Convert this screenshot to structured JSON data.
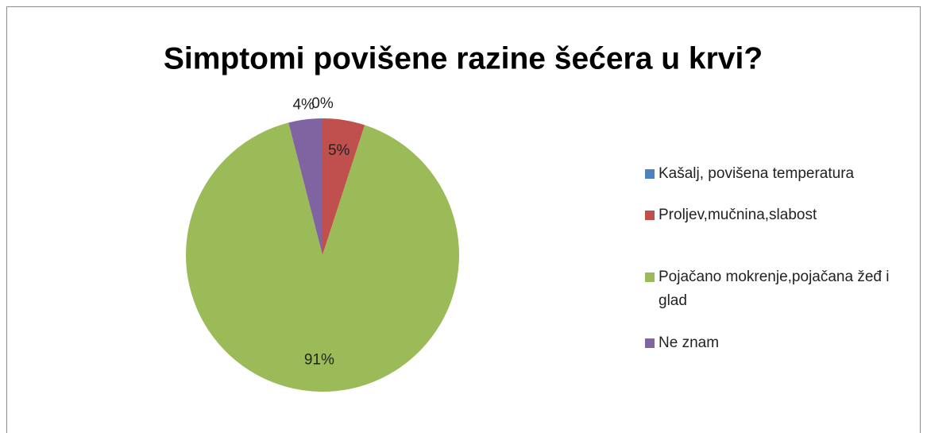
{
  "chart_data": {
    "type": "pie",
    "title": "Simptomi povišene razine šećera u krvi?",
    "categories": [
      "Kašalj, povišena temperatura",
      "Proljev,mučnina,slabost",
      "Pojačano mokrenje,pojačana žeđ i glad",
      "Ne znam"
    ],
    "values": [
      0,
      5,
      91,
      4
    ],
    "value_labels": [
      "0%",
      "5%",
      "91%",
      "4%"
    ],
    "colors": [
      "#4f81bd",
      "#c0504d",
      "#9bbb59",
      "#8064a2"
    ],
    "legend": "right"
  }
}
